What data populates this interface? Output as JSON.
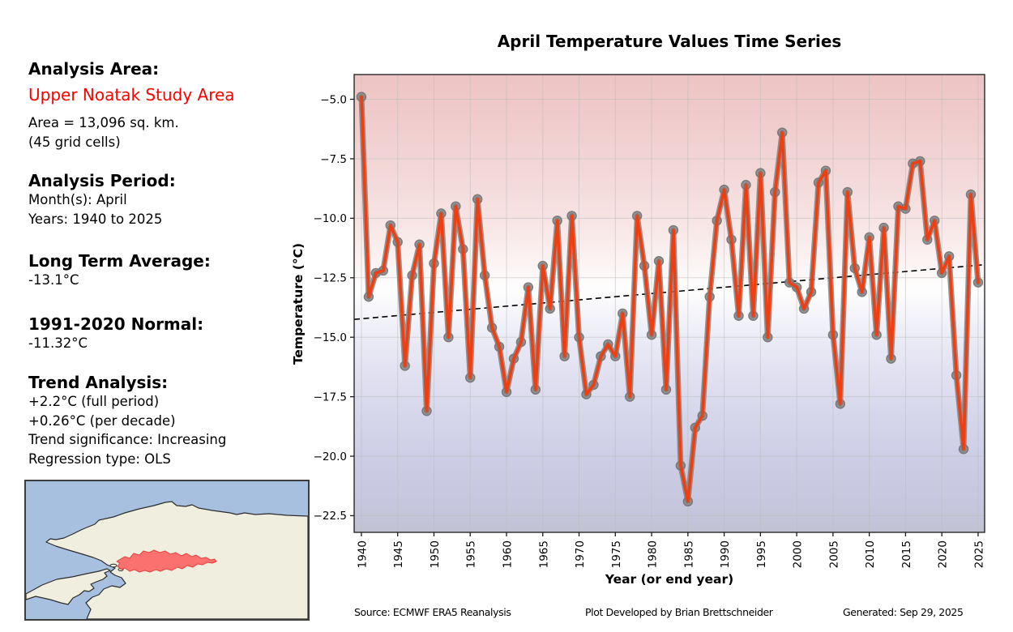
{
  "sidebar": {
    "analysis_area_heading": "Analysis Area:",
    "analysis_area_name": "Upper Noatak Study Area",
    "analysis_area_name_color": "#ff0000",
    "area_line": "Area = 13,096 sq. km.",
    "grid_cells_line": "(45 grid cells)",
    "analysis_period_heading": "Analysis Period:",
    "months_line": "Month(s): April",
    "years_line": "Years: 1940 to 2025",
    "long_term_avg_heading": "Long Term Average:",
    "long_term_avg_value": "-13.1°C",
    "normal_heading": "1991-2020 Normal:",
    "normal_value": "-11.32°C",
    "trend_heading": "Trend Analysis:",
    "trend_full_period": "+2.2°C (full period)",
    "trend_per_decade": "+0.26°C (per decade)",
    "trend_significance": "Trend significance: Increasing",
    "regression_type": "Regression type: OLS"
  },
  "map": {
    "water_color": "#a7c0e0",
    "land_color": "#f0efdf",
    "coast_color": "#2b2b2b",
    "study_area_fill": "#fb6b6b",
    "study_area_stroke": "#e53935"
  },
  "chart_data": {
    "type": "line",
    "title": "April Temperature Values Time Series",
    "xlabel": "Year (or end year)",
    "ylabel": "Temperature (°C)",
    "x": [
      1940,
      1941,
      1942,
      1943,
      1944,
      1945,
      1946,
      1947,
      1948,
      1949,
      1950,
      1951,
      1952,
      1953,
      1954,
      1955,
      1956,
      1957,
      1958,
      1959,
      1960,
      1961,
      1962,
      1963,
      1964,
      1965,
      1966,
      1967,
      1968,
      1969,
      1970,
      1971,
      1972,
      1973,
      1974,
      1975,
      1976,
      1977,
      1978,
      1979,
      1980,
      1981,
      1982,
      1983,
      1984,
      1985,
      1986,
      1987,
      1988,
      1989,
      1990,
      1991,
      1992,
      1993,
      1994,
      1995,
      1996,
      1997,
      1998,
      1999,
      2000,
      2001,
      2002,
      2003,
      2004,
      2005,
      2006,
      2007,
      2008,
      2009,
      2010,
      2011,
      2012,
      2013,
      2014,
      2015,
      2016,
      2017,
      2018,
      2019,
      2020,
      2021,
      2022,
      2023,
      2024,
      2025
    ],
    "values": [
      -4.9,
      -13.3,
      -12.3,
      -12.2,
      -10.3,
      -11.0,
      -16.2,
      -12.4,
      -11.1,
      -18.1,
      -11.9,
      -9.8,
      -15.0,
      -9.5,
      -11.3,
      -16.7,
      -9.2,
      -12.4,
      -14.6,
      -15.4,
      -17.3,
      -15.9,
      -15.2,
      -12.9,
      -17.2,
      -12.0,
      -13.8,
      -10.1,
      -15.8,
      -9.9,
      -15.0,
      -17.4,
      -17.0,
      -15.8,
      -15.3,
      -15.8,
      -14.0,
      -17.5,
      -9.9,
      -12.0,
      -14.9,
      -11.8,
      -17.2,
      -10.5,
      -20.4,
      -21.9,
      -18.8,
      -18.3,
      -13.3,
      -10.1,
      -8.8,
      -10.9,
      -14.1,
      -8.6,
      -14.1,
      -8.1,
      -15.0,
      -8.9,
      -6.4,
      -12.7,
      -12.9,
      -13.8,
      -13.1,
      -8.5,
      -8.0,
      -14.9,
      -17.8,
      -8.9,
      -12.1,
      -13.1,
      -10.8,
      -14.9,
      -10.4,
      -15.9,
      -9.5,
      -9.6,
      -7.7,
      -7.6,
      -10.9,
      -10.1,
      -12.3,
      -11.6,
      -16.6,
      -19.7,
      -9.0,
      -12.7
    ],
    "trend_line": {
      "x1": 1939.0,
      "v1": -14.25,
      "x2": 2025.9,
      "v2": -11.95,
      "style": "dashed",
      "color": "#000000"
    },
    "xticks": [
      1940,
      1945,
      1950,
      1955,
      1960,
      1965,
      1970,
      1975,
      1980,
      1985,
      1990,
      1995,
      2000,
      2005,
      2010,
      2015,
      2020,
      2025
    ],
    "yticks": [
      -22.5,
      -20.0,
      -17.5,
      -15.0,
      -12.5,
      -10.0,
      -7.5,
      -5.0
    ],
    "xlim": [
      1939.0,
      2025.9
    ],
    "ylim": [
      -23.2,
      -3.96
    ],
    "grid": true,
    "legend": "none",
    "line_color": "#ee3f12",
    "line_halo_color": "#7d7d7d",
    "marker_fill": "#919191",
    "marker_edge": "#6f6f6f",
    "grid_color": "#bdbdbd",
    "background_gradient_top": "#eec4c4",
    "background_gradient_mid": "#ffffff",
    "background_gradient_bottom": "#c2c2d4"
  },
  "footer": {
    "source": "Source: ECMWF ERA5 Reanalysis",
    "credit": "Plot Developed by Brian Brettschneider",
    "generated": "Generated: Sep 29, 2025"
  }
}
